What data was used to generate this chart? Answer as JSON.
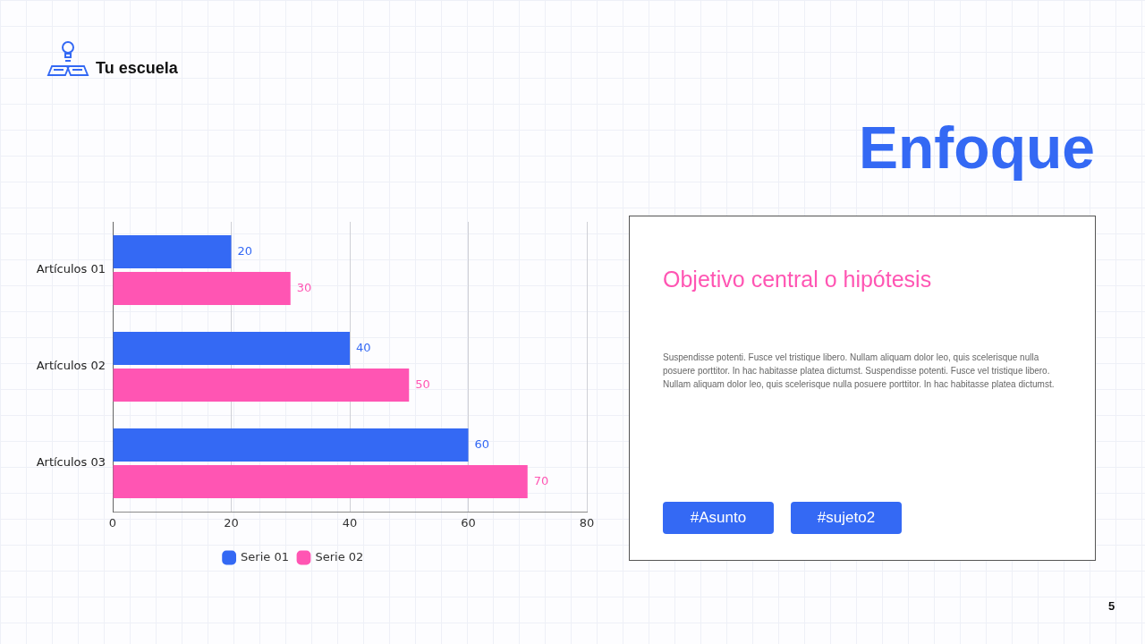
{
  "chart_data": [
    {
      "type": "bar",
      "orientation": "horizontal",
      "categories": [
        "Artículos 01",
        "Artículos 02",
        "Artículos 03"
      ],
      "series": [
        {
          "name": "Serie 01",
          "color": "#3469f4",
          "values": [
            20,
            40,
            60
          ]
        },
        {
          "name": "Serie 02",
          "color": "#ff55b3",
          "values": [
            30,
            50,
            70
          ]
        }
      ],
      "xlim": [
        0,
        80
      ],
      "xticks": [
        0,
        20,
        40,
        60,
        80
      ],
      "grid": "x",
      "legend": "bottom",
      "data_labels": true,
      "annotations": [
        "Tu escuela"
      ]
    },
    {
      "type": "other",
      "title": "Enfoque",
      "subtitle": "Objetivo central o hipótesis",
      "annotations": [
        "Suspendisse potenti. Fusce vel tristique libero. Nullam aliquam dolor leo, quis scelerisque nulla posuere porttitor. In hac habitasse platea dictumst. Suspendisse potenti. Fusce vel tristique libero. Nullam aliquam dolor leo, quis scelerisque nulla posuere porttitor. In hac habitasse platea dictumst.",
        "#Asunto",
        "#sujeto2",
        "5"
      ]
    }
  ]
}
